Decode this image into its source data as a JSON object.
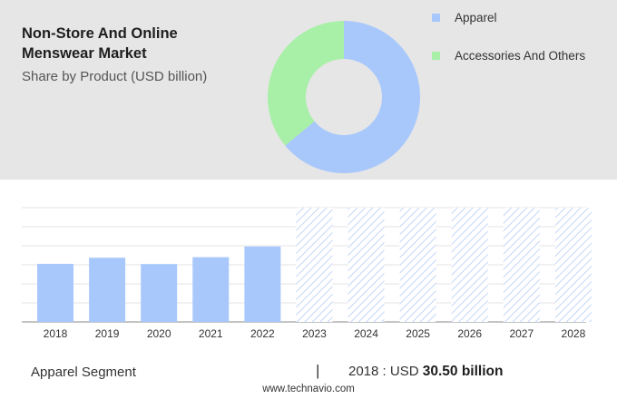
{
  "header": {
    "title": "Non-Store And Online Menswear Market",
    "subtitle": "Share by Product (USD billion)"
  },
  "legend": [
    {
      "label": "Apparel",
      "color": "#a8c8fc"
    },
    {
      "label": "Accessories And Others",
      "color": "#a8efa8"
    }
  ],
  "chart_data": [
    {
      "type": "pie",
      "variant": "donut",
      "labels": [
        "Apparel",
        "Accessories And Others"
      ],
      "values": [
        64,
        36
      ],
      "colors": [
        "#a8c8fc",
        "#a8efa8"
      ]
    },
    {
      "type": "bar",
      "categories": [
        "2018",
        "2019",
        "2020",
        "2021",
        "2022",
        "2023",
        "2024",
        "2025",
        "2026",
        "2027",
        "2028"
      ],
      "values": [
        30.5,
        33.7,
        30.4,
        34.0,
        39.6,
        null,
        null,
        null,
        null,
        null,
        null
      ],
      "forecast_categories": [
        "2023",
        "2024",
        "2025",
        "2026",
        "2027",
        "2028"
      ],
      "bar_color": "#a8c8fc",
      "forecast_style": "hatched",
      "grid": true,
      "ylim": [
        0,
        60
      ]
    }
  ],
  "footer": {
    "segment": "Apparel Segment",
    "separator": "|",
    "value_prefix": "2018 : USD",
    "value_bold": "30.50 billion"
  },
  "watermark": "www.technavio.com"
}
